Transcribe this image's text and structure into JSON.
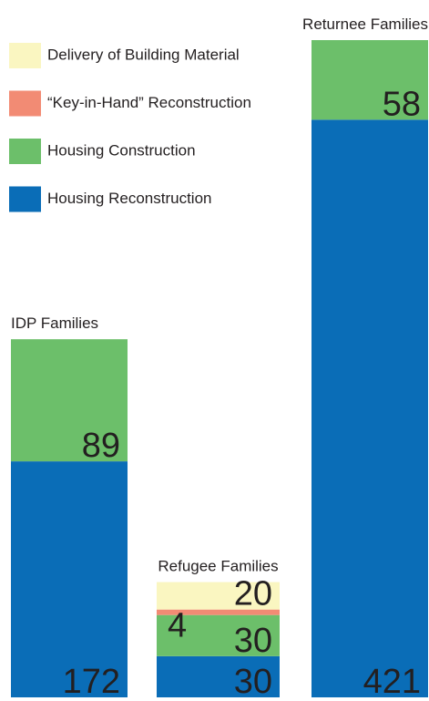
{
  "chart_data": {
    "type": "stacked-bar",
    "categories": [
      "IDP Families",
      "Refugee Families",
      "Returnee Families"
    ],
    "series": [
      {
        "name": "Housing Reconstruction",
        "color": "#0a6db7",
        "values": [
          172,
          30,
          421
        ]
      },
      {
        "name": "Housing Construction",
        "color": "#6cbf6a",
        "values": [
          89,
          30,
          58
        ]
      },
      {
        "name": "“Key-in-Hand” Reconstruction",
        "color": "#f28b74",
        "values": [
          0,
          4,
          0
        ]
      },
      {
        "name": "Delivery of Building Material",
        "color": "#faf6c1",
        "values": [
          0,
          20,
          0
        ]
      }
    ]
  }
}
